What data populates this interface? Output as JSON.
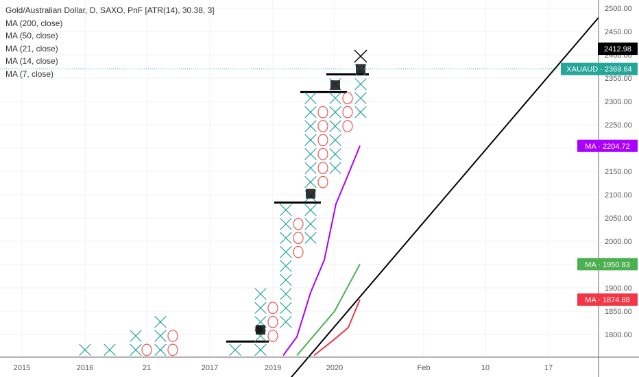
{
  "legend": {
    "title": "Gold/Australian Dollar, D, SAXO, PnF [ATR(14), 30.38, 3]",
    "ma_lines": [
      "MA (200, close)",
      "MA (50, close)",
      "MA (21, close)",
      "MA (14, close)",
      "MA (7, close)"
    ]
  },
  "price_tags": [
    {
      "label": "",
      "value": "2412.98",
      "bg": "#000000",
      "fg": "#ffffff",
      "price": 2412.98
    },
    {
      "label": "XAUAUD",
      "value": "2369.64",
      "bg": "#26a69a",
      "fg": "#ffffff",
      "price": 2369.64
    },
    {
      "label": "MA",
      "value": "2204.72",
      "bg": "#aa00ff",
      "fg": "#ffffff",
      "price": 2204.72
    },
    {
      "label": "MA",
      "value": "1950.83",
      "bg": "#4caf50",
      "fg": "#ffffff",
      "price": 1950.83
    },
    {
      "label": "MA",
      "value": "1874.88",
      "bg": "#f23645",
      "fg": "#ffffff",
      "price": 1874.88
    }
  ],
  "chart_data": {
    "type": "pnf",
    "box_size": 30.38,
    "reversal": 3,
    "ylim": [
      1755,
      2520
    ],
    "y_ticks": [
      1800,
      1850,
      1900,
      1950,
      2000,
      2050,
      2100,
      2150,
      2200,
      2250,
      2300,
      2350,
      2400,
      2450,
      2500
    ],
    "y_tick_labels": [
      "1800.00",
      "1850.00",
      "1900.00",
      "1950.00",
      "2000.00",
      "2050.00",
      "2100.00",
      "2150.00",
      "2200.00",
      "2250.00",
      "2300.00",
      "2350.00",
      "2400.00",
      "2450.00",
      "2500.00"
    ],
    "x_tick_labels": [
      "2015",
      "2016",
      "21",
      "2017",
      "2019",
      "2020",
      "Feb",
      "10",
      "17"
    ],
    "columns": [
      {
        "type": "X",
        "boxes": [
          1770
        ]
      },
      {
        "type": "X",
        "boxes": [
          1770
        ]
      },
      {
        "type": "X",
        "boxes": [
          1770,
          1800
        ]
      },
      {
        "type": "O",
        "boxes": [
          1770
        ]
      },
      {
        "type": "X",
        "boxes": [
          1770,
          1800,
          1830
        ]
      },
      {
        "type": "O",
        "boxes": [
          1770,
          1800
        ]
      },
      {
        "type": "X",
        "boxes": [
          1770
        ]
      },
      {
        "type": "X",
        "boxes": [
          1770,
          1800,
          1830,
          1860,
          1890
        ]
      },
      {
        "type": "O",
        "boxes": [
          1800,
          1830,
          1860
        ]
      },
      {
        "type": "X",
        "boxes": [
          1830,
          1860,
          1890,
          1920,
          1950,
          1980,
          2010,
          2040,
          2070
        ]
      },
      {
        "type": "O",
        "boxes": [
          1980,
          2010,
          2040
        ]
      },
      {
        "type": "X",
        "boxes": [
          2010,
          2040,
          2070,
          2100,
          2130,
          2160,
          2190,
          2220,
          2250,
          2280,
          2310
        ]
      },
      {
        "type": "O",
        "boxes": [
          2130,
          2160,
          2190,
          2220,
          2250,
          2280
        ]
      },
      {
        "type": "X",
        "boxes": [
          2160,
          2190,
          2220,
          2250,
          2280,
          2310,
          2340
        ]
      },
      {
        "type": "O",
        "boxes": [
          2250,
          2280,
          2310
        ]
      },
      {
        "type": "X",
        "boxes": [
          2280,
          2310,
          2340,
          2370
        ]
      }
    ],
    "pending_box": {
      "type": "X",
      "price": 2400
    },
    "markers": [
      {
        "kind": "circle",
        "price": 1810
      },
      {
        "kind": "square",
        "price": 1810
      },
      {
        "kind": "square",
        "price": 2102
      },
      {
        "kind": "square",
        "price": 2335
      },
      {
        "kind": "square",
        "price": 2370
      }
    ],
    "levels": [
      1785,
      2083,
      2320,
      2358
    ],
    "series": [
      {
        "color": "#aa00ff",
        "values": [
          1755,
          1795,
          1890,
          1960,
          2080,
          2140,
          2205
        ]
      },
      {
        "color": "#4caf50",
        "values": [
          1755,
          1850,
          1951
        ]
      },
      {
        "color": "#f23645",
        "values": [
          1755,
          1790,
          1815,
          1875
        ]
      }
    ],
    "trendline": {
      "from": 1700,
      "to": 2480
    },
    "last_price": 2369.64,
    "grid": true
  }
}
